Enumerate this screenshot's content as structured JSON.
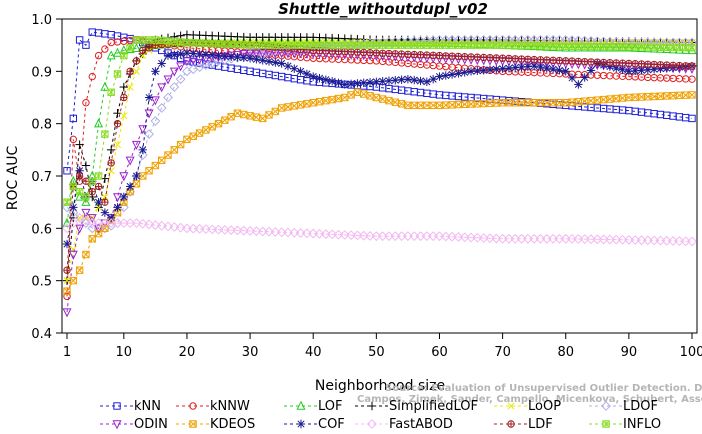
{
  "chart_data": {
    "type": "line",
    "title": "Shuttle_withoutdupl_v02",
    "xlabel": "Neighborhood size",
    "ylabel": "ROC AUC",
    "xlim": [
      1,
      100
    ],
    "ylim": [
      0.4,
      1.0
    ],
    "xticks": [
      1,
      10,
      20,
      30,
      40,
      50,
      60,
      70,
      80,
      90,
      100
    ],
    "yticks": [
      0.4,
      0.5,
      0.6,
      0.7,
      0.8,
      0.9,
      1.0
    ],
    "watermark": [
      "Source: Evaluation of Unsupervised Outlier Detection. DAMI, 2015.",
      "Campos, Zimek, Sander, Campello, Micenkova, Schubert, Assent, Houle"
    ],
    "series": [
      {
        "name": "kNN",
        "color": "#1f1fd6",
        "marker": "square",
        "points": [
          [
            1,
            0.71
          ],
          [
            2,
            0.81
          ],
          [
            3,
            0.96
          ],
          [
            4,
            0.95
          ],
          [
            5,
            0.975
          ],
          [
            8,
            0.97
          ],
          [
            12,
            0.96
          ],
          [
            20,
            0.92
          ],
          [
            30,
            0.9
          ],
          [
            40,
            0.88
          ],
          [
            50,
            0.87
          ],
          [
            60,
            0.855
          ],
          [
            70,
            0.845
          ],
          [
            80,
            0.835
          ],
          [
            90,
            0.825
          ],
          [
            100,
            0.81
          ]
        ]
      },
      {
        "name": "kNNW",
        "color": "#e02020",
        "marker": "circle",
        "points": [
          [
            1,
            0.47
          ],
          [
            2,
            0.77
          ],
          [
            3,
            0.69
          ],
          [
            4,
            0.84
          ],
          [
            5,
            0.89
          ],
          [
            6,
            0.93
          ],
          [
            8,
            0.955
          ],
          [
            12,
            0.96
          ],
          [
            20,
            0.945
          ],
          [
            30,
            0.935
          ],
          [
            40,
            0.925
          ],
          [
            50,
            0.92
          ],
          [
            60,
            0.91
          ],
          [
            70,
            0.9
          ],
          [
            80,
            0.895
          ],
          [
            90,
            0.89
          ],
          [
            100,
            0.885
          ]
        ]
      },
      {
        "name": "LOF",
        "color": "#22cc22",
        "marker": "triangle",
        "points": [
          [
            1,
            0.61
          ],
          [
            2,
            0.69
          ],
          [
            3,
            0.66
          ],
          [
            4,
            0.65
          ],
          [
            5,
            0.7
          ],
          [
            6,
            0.8
          ],
          [
            7,
            0.87
          ],
          [
            8,
            0.93
          ],
          [
            10,
            0.94
          ],
          [
            15,
            0.95
          ],
          [
            20,
            0.955
          ],
          [
            30,
            0.955
          ],
          [
            40,
            0.955
          ],
          [
            50,
            0.955
          ],
          [
            60,
            0.955
          ],
          [
            70,
            0.95
          ],
          [
            80,
            0.945
          ],
          [
            90,
            0.945
          ],
          [
            100,
            0.94
          ]
        ]
      },
      {
        "name": "SimplifiedLOF",
        "color": "#000000",
        "marker": "plus",
        "points": [
          [
            1,
            0.5
          ],
          [
            2,
            0.62
          ],
          [
            3,
            0.76
          ],
          [
            4,
            0.72
          ],
          [
            5,
            0.66
          ],
          [
            6,
            0.64
          ],
          [
            8,
            0.75
          ],
          [
            9,
            0.82
          ],
          [
            10,
            0.87
          ],
          [
            12,
            0.92
          ],
          [
            15,
            0.96
          ],
          [
            20,
            0.97
          ],
          [
            30,
            0.965
          ],
          [
            40,
            0.965
          ],
          [
            50,
            0.96
          ],
          [
            60,
            0.96
          ],
          [
            70,
            0.96
          ],
          [
            80,
            0.958
          ],
          [
            90,
            0.957
          ],
          [
            100,
            0.955
          ]
        ]
      },
      {
        "name": "LoOP",
        "color": "#e8e800",
        "marker": "x",
        "points": [
          [
            1,
            0.5
          ],
          [
            3,
            0.62
          ],
          [
            5,
            0.62
          ],
          [
            7,
            0.66
          ],
          [
            9,
            0.76
          ],
          [
            11,
            0.87
          ],
          [
            13,
            0.93
          ],
          [
            15,
            0.95
          ],
          [
            20,
            0.955
          ],
          [
            30,
            0.955
          ],
          [
            40,
            0.955
          ],
          [
            50,
            0.955
          ],
          [
            60,
            0.955
          ],
          [
            70,
            0.955
          ],
          [
            80,
            0.955
          ],
          [
            90,
            0.955
          ],
          [
            100,
            0.955
          ]
        ]
      },
      {
        "name": "LDOF",
        "color": "#b0b0e8",
        "marker": "diamond",
        "points": [
          [
            1,
            0.64
          ],
          [
            3,
            0.62
          ],
          [
            5,
            0.6
          ],
          [
            7,
            0.6
          ],
          [
            9,
            0.61
          ],
          [
            12,
            0.7
          ],
          [
            14,
            0.78
          ],
          [
            16,
            0.83
          ],
          [
            18,
            0.87
          ],
          [
            20,
            0.9
          ],
          [
            25,
            0.92
          ],
          [
            30,
            0.93
          ],
          [
            40,
            0.945
          ],
          [
            50,
            0.955
          ],
          [
            60,
            0.96
          ],
          [
            70,
            0.96
          ],
          [
            80,
            0.96
          ],
          [
            90,
            0.955
          ],
          [
            100,
            0.955
          ]
        ]
      },
      {
        "name": "ODIN",
        "color": "#9922cc",
        "marker": "triangle-down",
        "points": [
          [
            1,
            0.44
          ],
          [
            2,
            0.55
          ],
          [
            3,
            0.6
          ],
          [
            4,
            0.63
          ],
          [
            5,
            0.62
          ],
          [
            6,
            0.6
          ],
          [
            8,
            0.62
          ],
          [
            10,
            0.7
          ],
          [
            12,
            0.76
          ],
          [
            14,
            0.82
          ],
          [
            16,
            0.87
          ],
          [
            18,
            0.9
          ],
          [
            20,
            0.92
          ],
          [
            30,
            0.935
          ],
          [
            40,
            0.935
          ],
          [
            50,
            0.93
          ],
          [
            60,
            0.925
          ],
          [
            70,
            0.92
          ],
          [
            80,
            0.915
          ],
          [
            90,
            0.91
          ],
          [
            100,
            0.905
          ]
        ]
      },
      {
        "name": "KDEOS",
        "color": "#f0a000",
        "marker": "square-x",
        "points": [
          [
            1,
            0.48
          ],
          [
            3,
            0.52
          ],
          [
            5,
            0.58
          ],
          [
            7,
            0.6
          ],
          [
            9,
            0.63
          ],
          [
            11,
            0.67
          ],
          [
            13,
            0.7
          ],
          [
            15,
            0.72
          ],
          [
            18,
            0.75
          ],
          [
            20,
            0.77
          ],
          [
            25,
            0.8
          ],
          [
            28,
            0.82
          ],
          [
            30,
            0.815
          ],
          [
            32,
            0.81
          ],
          [
            35,
            0.83
          ],
          [
            40,
            0.84
          ],
          [
            45,
            0.85
          ],
          [
            47,
            0.86
          ],
          [
            50,
            0.85
          ],
          [
            55,
            0.835
          ],
          [
            60,
            0.835
          ],
          [
            70,
            0.84
          ],
          [
            80,
            0.84
          ],
          [
            90,
            0.85
          ],
          [
            100,
            0.855
          ]
        ]
      },
      {
        "name": "COF",
        "color": "#1a1a90",
        "marker": "star",
        "points": [
          [
            1,
            0.57
          ],
          [
            2,
            0.64
          ],
          [
            3,
            0.71
          ],
          [
            4,
            0.66
          ],
          [
            5,
            0.69
          ],
          [
            6,
            0.65
          ],
          [
            7,
            0.63
          ],
          [
            8,
            0.62
          ],
          [
            10,
            0.66
          ],
          [
            12,
            0.7
          ],
          [
            13,
            0.75
          ],
          [
            14,
            0.85
          ],
          [
            15,
            0.9
          ],
          [
            17,
            0.93
          ],
          [
            20,
            0.935
          ],
          [
            25,
            0.93
          ],
          [
            30,
            0.925
          ],
          [
            35,
            0.915
          ],
          [
            40,
            0.89
          ],
          [
            45,
            0.875
          ],
          [
            50,
            0.88
          ],
          [
            55,
            0.885
          ],
          [
            58,
            0.88
          ],
          [
            60,
            0.89
          ],
          [
            65,
            0.9
          ],
          [
            70,
            0.905
          ],
          [
            75,
            0.91
          ],
          [
            80,
            0.9
          ],
          [
            82,
            0.875
          ],
          [
            85,
            0.915
          ],
          [
            90,
            0.9
          ],
          [
            95,
            0.905
          ],
          [
            100,
            0.91
          ]
        ]
      },
      {
        "name": "FastABOD",
        "color": "#f2b8f2",
        "marker": "diamond",
        "points": [
          [
            1,
            0.6
          ],
          [
            3,
            0.62
          ],
          [
            5,
            0.61
          ],
          [
            8,
            0.61
          ],
          [
            12,
            0.61
          ],
          [
            20,
            0.6
          ],
          [
            30,
            0.595
          ],
          [
            40,
            0.59
          ],
          [
            50,
            0.585
          ],
          [
            60,
            0.585
          ],
          [
            70,
            0.58
          ],
          [
            80,
            0.58
          ],
          [
            90,
            0.578
          ],
          [
            100,
            0.575
          ]
        ]
      },
      {
        "name": "LDF",
        "color": "#a02020",
        "marker": "circle-plus",
        "points": [
          [
            1,
            0.52
          ],
          [
            2,
            0.68
          ],
          [
            3,
            0.7
          ],
          [
            4,
            0.69
          ],
          [
            5,
            0.67
          ],
          [
            6,
            0.68
          ],
          [
            7,
            0.65
          ],
          [
            9,
            0.8
          ],
          [
            11,
            0.9
          ],
          [
            13,
            0.94
          ],
          [
            15,
            0.95
          ],
          [
            20,
            0.955
          ],
          [
            30,
            0.95
          ],
          [
            40,
            0.94
          ],
          [
            50,
            0.935
          ],
          [
            60,
            0.93
          ],
          [
            70,
            0.925
          ],
          [
            80,
            0.92
          ],
          [
            90,
            0.915
          ],
          [
            100,
            0.91
          ]
        ]
      },
      {
        "name": "INFLO",
        "color": "#88dd22",
        "marker": "square-star",
        "points": [
          [
            1,
            0.65
          ],
          [
            2,
            0.68
          ],
          [
            3,
            0.67
          ],
          [
            4,
            0.66
          ],
          [
            5,
            0.69
          ],
          [
            6,
            0.7
          ],
          [
            8,
            0.86
          ],
          [
            10,
            0.93
          ],
          [
            12,
            0.96
          ],
          [
            15,
            0.96
          ],
          [
            20,
            0.955
          ],
          [
            30,
            0.95
          ],
          [
            40,
            0.95
          ],
          [
            50,
            0.95
          ],
          [
            60,
            0.95
          ],
          [
            70,
            0.95
          ],
          [
            80,
            0.948
          ],
          [
            90,
            0.947
          ],
          [
            100,
            0.945
          ]
        ]
      }
    ]
  }
}
